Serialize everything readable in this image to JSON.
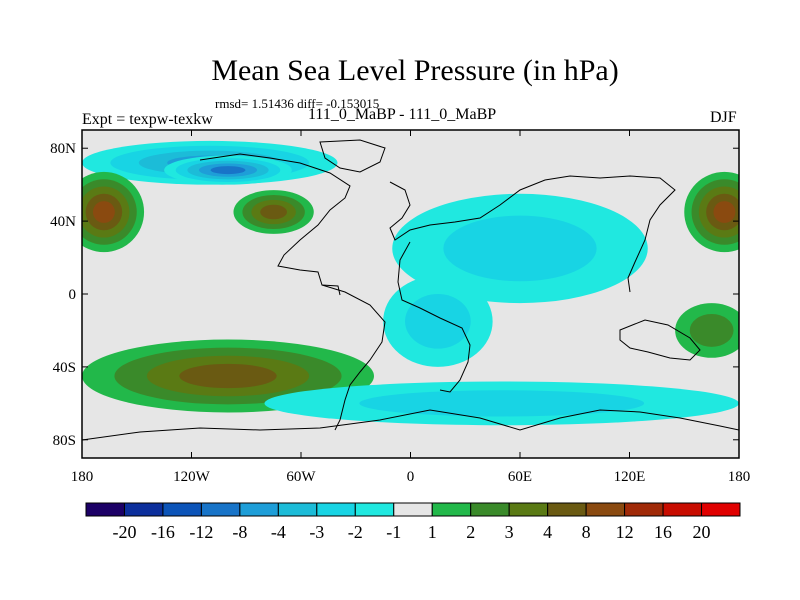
{
  "chart_data": {
    "type": "heatmap",
    "title": "Mean Sea Level Pressure (in hPa)",
    "stats_text": "rmsd= 1.51436 diff= -0.153015",
    "left_label": "Expt = texpw-texkw",
    "center_label": "111_0_MaBP - 111_0_MaBP",
    "season": "DJF",
    "x_ticks": [
      "180",
      "120W",
      "60W",
      "0",
      "60E",
      "120E",
      "180"
    ],
    "y_ticks": [
      "80N",
      "40N",
      "0",
      "40S",
      "80S"
    ],
    "xlim": [
      -180,
      180
    ],
    "ylim": [
      -90,
      90
    ],
    "units": "hPa",
    "colorbar_labels": [
      "-20",
      "-16",
      "-12",
      "-8",
      "-4",
      "-3",
      "-2",
      "-1",
      "1",
      "2",
      "3",
      "4",
      "8",
      "12",
      "16",
      "20"
    ],
    "colorbar_colors": [
      "#1c0066",
      "#0c2f9c",
      "#0c54b8",
      "#1874c8",
      "#1e9ed8",
      "#1cbcd8",
      "#18d4e4",
      "#20e8e0",
      "#e6e6e6",
      "#22b84a",
      "#3a8a2a",
      "#5a7a14",
      "#6a5a12",
      "#8a4a10",
      "#a02a08",
      "#c80c00",
      "#e00000"
    ],
    "fields": [
      {
        "name": "arctic-negative",
        "lon": -110,
        "lat": 72,
        "lon_radius": 70,
        "lat_radius": 12,
        "value": -4
      },
      {
        "name": "arctic-core",
        "lon": -100,
        "lat": 68,
        "lon_radius": 35,
        "lat_radius": 8,
        "value": -8
      },
      {
        "name": "n-pacific-positive-west",
        "lon": 172,
        "lat": 45,
        "lon_radius": 22,
        "lat_radius": 22,
        "value": 8
      },
      {
        "name": "n-pacific-positive-east",
        "lon": -168,
        "lat": 45,
        "lon_radius": 22,
        "lat_radius": 22,
        "value": 8
      },
      {
        "name": "n-america-positive",
        "lon": -75,
        "lat": 45,
        "lon_radius": 22,
        "lat_radius": 12,
        "value": 4
      },
      {
        "name": "asia-negative",
        "lon": 60,
        "lat": 25,
        "lon_radius": 70,
        "lat_radius": 30,
        "value": -2
      },
      {
        "name": "africa-negative",
        "lon": 15,
        "lat": -15,
        "lon_radius": 30,
        "lat_radius": 25,
        "value": -2
      },
      {
        "name": "s-pacific-positive",
        "lon": -100,
        "lat": -45,
        "lon_radius": 80,
        "lat_radius": 20,
        "value": 4
      },
      {
        "name": "southern-ocean-negative",
        "lon": 50,
        "lat": -60,
        "lon_radius": 130,
        "lat_radius": 12,
        "value": -2
      },
      {
        "name": "s-indian-positive",
        "lon": 165,
        "lat": -20,
        "lon_radius": 20,
        "lat_radius": 15,
        "value": 2
      }
    ]
  }
}
